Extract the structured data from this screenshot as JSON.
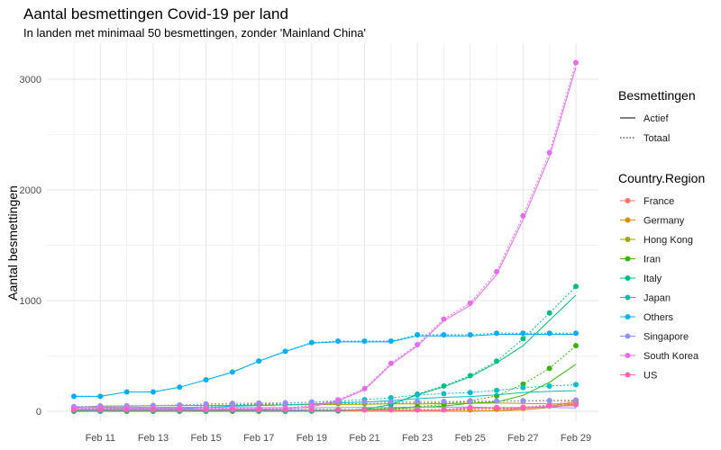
{
  "chart_data": {
    "type": "line",
    "title": "Aantal besmettingen Covid-19 per land",
    "subtitle": "In landen met minimaal 50 besmettingen, zonder 'Mainland China'",
    "ylabel": "Aantal besmettingen",
    "xlabel": "",
    "ylim": [
      -50,
      3300
    ],
    "yticks": [
      0,
      1000,
      2000,
      3000
    ],
    "x_day_range": [
      10,
      29
    ],
    "x_labels": [
      "Feb 11",
      "Feb 13",
      "Feb 15",
      "Feb 17",
      "Feb 19",
      "Feb 21",
      "Feb 23",
      "Feb 25",
      "Feb 27",
      "Feb 29"
    ],
    "x_label_days": [
      11,
      13,
      15,
      17,
      19,
      21,
      23,
      25,
      27,
      29
    ],
    "days": [
      10,
      11,
      12,
      13,
      14,
      15,
      16,
      17,
      18,
      19,
      20,
      21,
      22,
      23,
      24,
      25,
      26,
      27,
      28,
      29
    ],
    "linetype_legend": {
      "title": "Besmettingen",
      "items": [
        {
          "label": "Actief",
          "dash": "solid"
        },
        {
          "label": "Totaal",
          "dash": "dotted"
        }
      ]
    },
    "color_legend_title": "Country.Region",
    "series": [
      {
        "name": "France",
        "color": "#F8766D",
        "totaal": [
          11,
          11,
          11,
          11,
          11,
          12,
          12,
          12,
          12,
          12,
          12,
          12,
          12,
          12,
          12,
          12,
          18,
          38,
          57,
          100
        ],
        "actief": [
          10,
          9,
          9,
          9,
          9,
          8,
          8,
          8,
          8,
          8,
          8,
          0,
          0,
          0,
          0,
          0,
          5,
          25,
          44,
          88
        ]
      },
      {
        "name": "Germany",
        "color": "#D89000",
        "totaal": [
          14,
          16,
          16,
          16,
          16,
          16,
          16,
          16,
          16,
          16,
          16,
          16,
          16,
          16,
          16,
          16,
          18,
          26,
          48,
          79
        ],
        "actief": [
          13,
          14,
          14,
          14,
          14,
          14,
          14,
          14,
          2,
          2,
          2,
          2,
          2,
          2,
          2,
          2,
          4,
          12,
          34,
          65
        ]
      },
      {
        "name": "Hong Kong",
        "color": "#A3A500",
        "totaal": [
          36,
          49,
          50,
          53,
          56,
          56,
          57,
          60,
          62,
          65,
          68,
          69,
          74,
          74,
          79,
          84,
          91,
          92,
          94,
          95
        ],
        "actief": [
          35,
          47,
          48,
          50,
          53,
          52,
          53,
          55,
          57,
          60,
          62,
          63,
          68,
          66,
          70,
          72,
          75,
          71,
          67,
          65
        ]
      },
      {
        "name": "Iran",
        "color": "#39B600",
        "totaal": [
          0,
          0,
          0,
          0,
          0,
          0,
          0,
          0,
          0,
          2,
          5,
          18,
          28,
          43,
          61,
          95,
          139,
          245,
          388,
          593
        ],
        "actief": [
          0,
          0,
          0,
          0,
          0,
          0,
          0,
          0,
          0,
          2,
          5,
          16,
          23,
          35,
          47,
          73,
          84,
          144,
          262,
          425
        ]
      },
      {
        "name": "Italy",
        "color": "#00BF7D",
        "totaal": [
          3,
          3,
          3,
          3,
          3,
          3,
          3,
          3,
          3,
          3,
          3,
          20,
          62,
          155,
          229,
          322,
          453,
          655,
          888,
          1128
        ],
        "actief": [
          3,
          3,
          3,
          3,
          3,
          3,
          3,
          3,
          3,
          3,
          3,
          19,
          59,
          150,
          221,
          311,
          438,
          593,
          821,
          1049
        ]
      },
      {
        "name": "Japan",
        "color": "#00BFC4",
        "totaal": [
          26,
          26,
          28,
          28,
          29,
          43,
          59,
          66,
          74,
          84,
          94,
          105,
          122,
          147,
          159,
          170,
          189,
          214,
          228,
          241
        ],
        "actief": [
          25,
          25,
          27,
          27,
          27,
          33,
          47,
          52,
          58,
          66,
          76,
          83,
          96,
          115,
          126,
          133,
          149,
          170,
          180,
          186
        ]
      },
      {
        "name": "Others",
        "color": "#00B0F6",
        "totaal": [
          135,
          135,
          175,
          175,
          218,
          285,
          355,
          454,
          542,
          621,
          634,
          634,
          634,
          691,
          691,
          691,
          705,
          705,
          705,
          705
        ],
        "actief": [
          135,
          135,
          175,
          175,
          217,
          283,
          353,
          452,
          540,
          616,
          627,
          627,
          627,
          681,
          681,
          681,
          695,
          695,
          695,
          695
        ]
      },
      {
        "name": "Singapore",
        "color": "#9590FF",
        "totaal": [
          43,
          45,
          47,
          50,
          58,
          67,
          72,
          75,
          77,
          81,
          84,
          85,
          86,
          89,
          89,
          91,
          93,
          96,
          98,
          102
        ],
        "actief": [
          41,
          36,
          38,
          34,
          39,
          33,
          34,
          33,
          33,
          32,
          33,
          34,
          35,
          37,
          37,
          38,
          30,
          34,
          34,
          30
        ]
      },
      {
        "name": "South Korea",
        "color": "#E76BF3",
        "totaal": [
          27,
          28,
          28,
          28,
          28,
          28,
          29,
          30,
          31,
          51,
          104,
          204,
          433,
          602,
          833,
          977,
          1261,
          1766,
          2337,
          3150
        ],
        "actief": [
          24,
          24,
          23,
          21,
          21,
          19,
          20,
          20,
          21,
          41,
          94,
          194,
          422,
          590,
          818,
          957,
          1235,
          1731,
          2300,
          3107
        ]
      },
      {
        "name": "US",
        "color": "#FF62BC",
        "totaal": [
          13,
          13,
          13,
          13,
          13,
          13,
          13,
          13,
          13,
          13,
          13,
          13,
          15,
          15,
          15,
          35,
          35,
          35,
          53,
          59
        ],
        "actief": [
          12,
          11,
          10,
          10,
          10,
          10,
          10,
          10,
          10,
          10,
          10,
          10,
          9,
          9,
          9,
          29,
          29,
          29,
          45,
          51
        ]
      }
    ]
  }
}
